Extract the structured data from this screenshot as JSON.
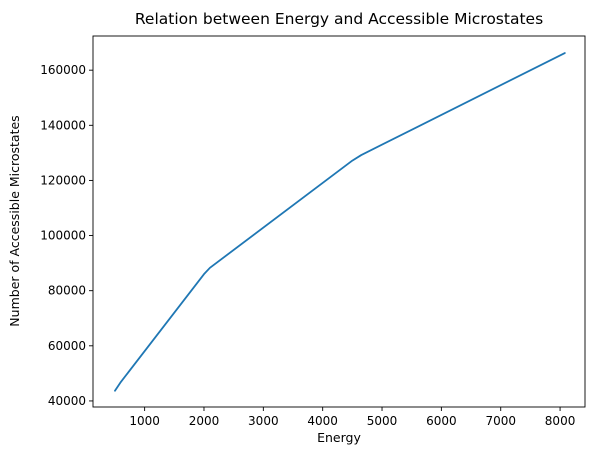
{
  "chart_data": {
    "type": "line",
    "title": "Relation between Energy and Accessible Microstates",
    "xlabel": "Energy",
    "ylabel": "Number of Accessible Microstates",
    "xlim": [
      130,
      8420
    ],
    "ylim": [
      37800,
      172400
    ],
    "xticks": [
      1000,
      2000,
      3000,
      4000,
      5000,
      6000,
      7000,
      8000
    ],
    "yticks": [
      40000,
      60000,
      80000,
      100000,
      120000,
      140000,
      160000
    ],
    "grid": false,
    "legend": null,
    "series": [
      {
        "color": "#1f77b4",
        "x": [
          500,
          600,
          2000,
          2100,
          4500,
          4650,
          8080
        ],
        "y": [
          43700,
          46900,
          86000,
          88300,
          127200,
          129200,
          166200
        ]
      }
    ]
  }
}
